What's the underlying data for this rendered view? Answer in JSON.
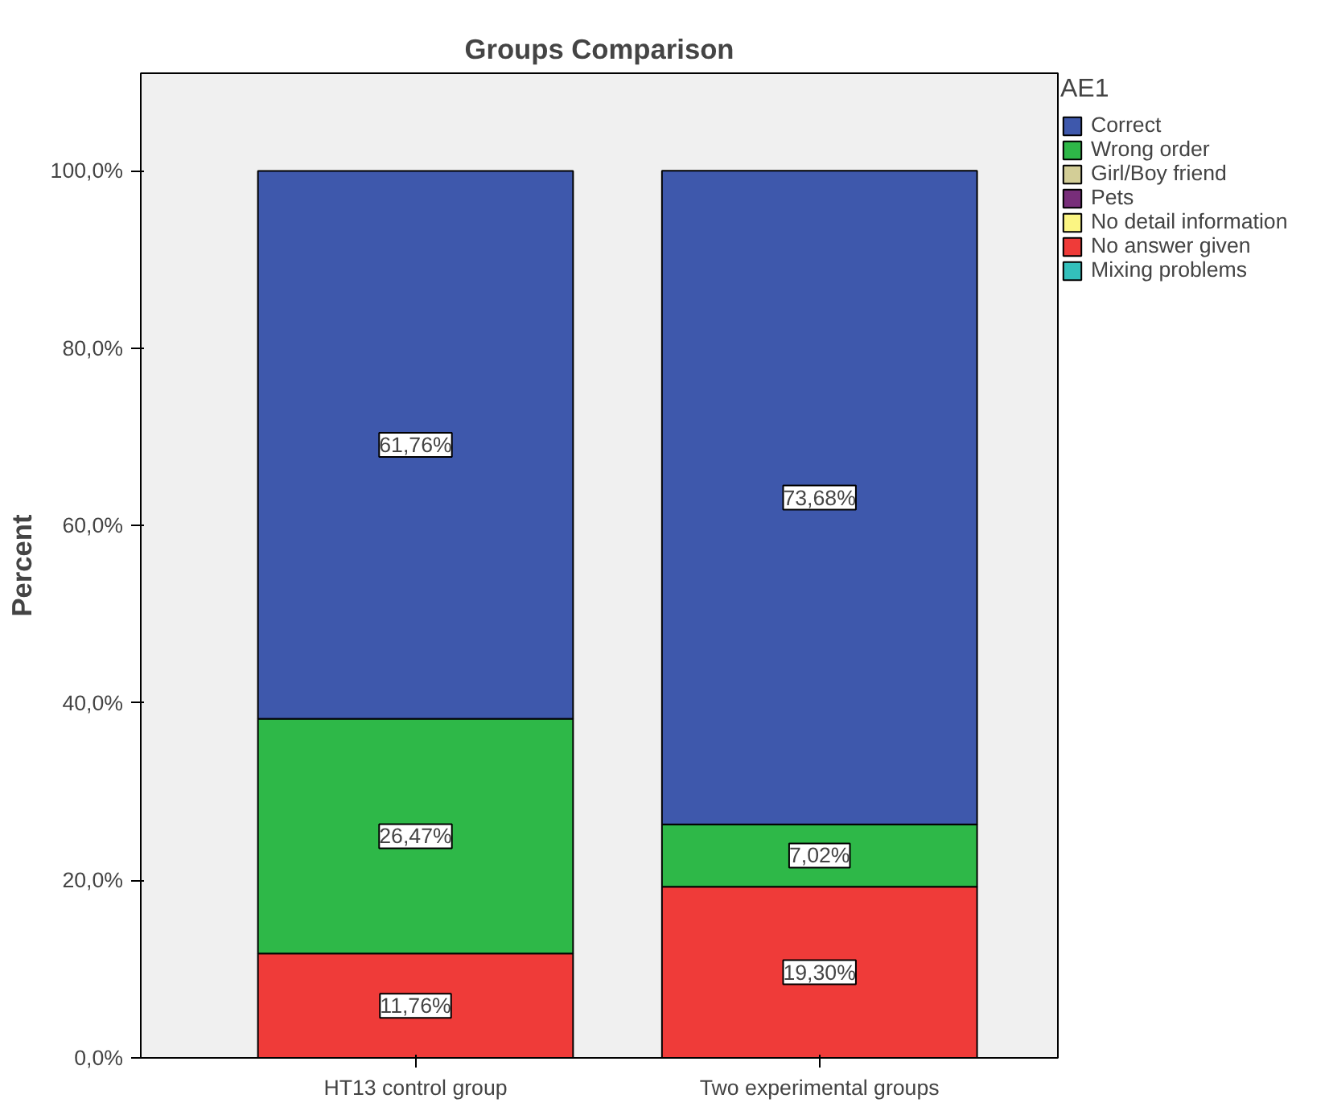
{
  "chart_data": {
    "type": "bar",
    "title": "Groups Comparison",
    "ylabel": "Percent",
    "legend_title": "AE1",
    "stacked": true,
    "legend": "right",
    "grid": false,
    "categories": [
      "HT13 control group",
      "Two experimental groups"
    ],
    "ylim": [
      0,
      111
    ],
    "yticks": [
      {
        "value": 0,
        "label": "0,0%"
      },
      {
        "value": 20,
        "label": "20,0%"
      },
      {
        "value": 40,
        "label": "40,0%"
      },
      {
        "value": 60,
        "label": "60,0%"
      },
      {
        "value": 80,
        "label": "80,0%"
      },
      {
        "value": 100,
        "label": "100,0%"
      }
    ],
    "series": [
      {
        "name": "Mixing problems",
        "color": "#33c0bc",
        "values": [
          0,
          0
        ],
        "value_labels": [
          null,
          null
        ]
      },
      {
        "name": "No answer given",
        "color": "#ef3b39",
        "values": [
          11.76,
          19.3
        ],
        "value_labels": [
          "11,76%",
          "19,30%"
        ]
      },
      {
        "name": "No detail information",
        "color": "#fbf583",
        "values": [
          0,
          0
        ],
        "value_labels": [
          null,
          null
        ]
      },
      {
        "name": "Pets",
        "color": "#782e7a",
        "values": [
          0,
          0
        ],
        "value_labels": [
          null,
          null
        ]
      },
      {
        "name": "Girl/Boy friend",
        "color": "#d3ce97",
        "values": [
          0,
          0
        ],
        "value_labels": [
          null,
          null
        ]
      },
      {
        "name": "Wrong order",
        "color": "#2eb848",
        "values": [
          26.47,
          7.02
        ],
        "value_labels": [
          "26,47%",
          "7,02%"
        ]
      },
      {
        "name": "Correct",
        "color": "#3e58ac",
        "values": [
          61.76,
          73.68
        ],
        "value_labels": [
          "61,76%",
          "73,68%"
        ]
      }
    ]
  }
}
